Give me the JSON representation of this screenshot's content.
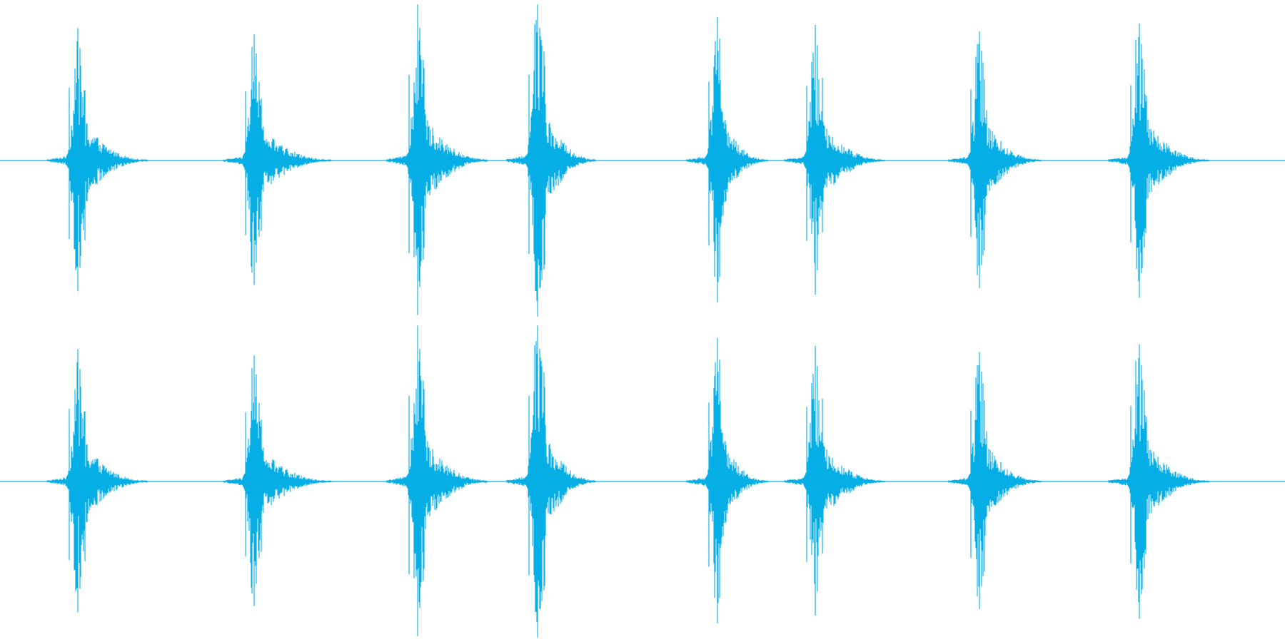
{
  "waveform": {
    "color": "#06aee6",
    "background": "#ffffff",
    "channel_count": 2,
    "channels": [
      {
        "name": "",
        "layout": "top"
      },
      {
        "name": "",
        "layout": "bottom"
      }
    ],
    "events": [
      {
        "peak_up": 0.84,
        "peak_down": 0.83,
        "decay": 0.55,
        "tail": 1.0
      },
      {
        "peak_up": 0.8,
        "peak_down": 0.79,
        "decay": 0.5,
        "tail": 1.1
      },
      {
        "peak_up": 0.99,
        "peak_down": 0.98,
        "decay": 0.55,
        "tail": 1.0
      },
      {
        "peak_up": 0.99,
        "peak_down": 0.99,
        "decay": 0.6,
        "tail": 0.85
      },
      {
        "peak_up": 0.91,
        "peak_down": 0.9,
        "decay": 0.5,
        "tail": 0.75
      },
      {
        "peak_up": 0.86,
        "peak_down": 0.85,
        "decay": 0.55,
        "tail": 1.0
      },
      {
        "peak_up": 0.82,
        "peak_down": 0.81,
        "decay": 0.55,
        "tail": 0.9
      },
      {
        "peak_up": 0.87,
        "peak_down": 0.87,
        "decay": 0.55,
        "tail": 1.0
      }
    ]
  }
}
